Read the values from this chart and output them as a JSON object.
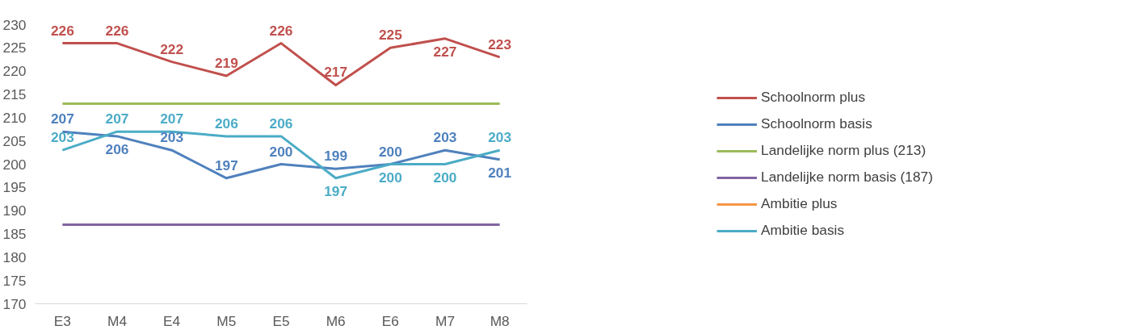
{
  "chart_data": {
    "type": "line",
    "categories": [
      "E3",
      "M4",
      "E4",
      "M5",
      "E5",
      "M6",
      "E6",
      "M7",
      "M8"
    ],
    "ylim": [
      170,
      230
    ],
    "yticks": [
      170,
      175,
      180,
      185,
      190,
      195,
      200,
      205,
      210,
      215,
      220,
      225,
      230
    ],
    "grid": false,
    "legend": "right",
    "marker": "none",
    "line_style": "solid",
    "series": [
      {
        "name": "Schoolnorm plus",
        "color": "#c0504d",
        "values": [
          226,
          226,
          222,
          219,
          226,
          217,
          225,
          227,
          223
        ],
        "value_labels": [
          "226",
          "226",
          "222",
          "219",
          "226",
          "217",
          "225",
          "227",
          "223"
        ]
      },
      {
        "name": "Schoolnorm basis",
        "color": "#4f81bd",
        "values": [
          207,
          206,
          203,
          197,
          200,
          199,
          200,
          203,
          201
        ],
        "value_labels": [
          "207",
          "206",
          "203",
          "197",
          "200",
          "199",
          "200",
          "203",
          "201"
        ]
      },
      {
        "name": "Landelijke norm plus (213)",
        "color": "#9bbb59",
        "values": [
          213,
          213,
          213,
          213,
          213,
          213,
          213,
          213,
          213
        ]
      },
      {
        "name": "Landelijke norm basis (187)",
        "color": "#8064a2",
        "values": [
          187,
          187,
          187,
          187,
          187,
          187,
          187,
          187,
          187
        ]
      },
      {
        "name": "Ambitie plus",
        "color": "#f79646",
        "values": [
          null,
          null,
          null,
          null,
          null,
          null,
          null,
          null,
          null
        ]
      },
      {
        "name": "Ambitie basis",
        "color": "#4bacc6",
        "values": [
          203,
          207,
          207,
          206,
          206,
          197,
          200,
          200,
          203
        ],
        "value_labels": [
          "203",
          "207",
          "207",
          "206",
          "206",
          "197",
          "200",
          "200",
          "203"
        ]
      }
    ]
  }
}
